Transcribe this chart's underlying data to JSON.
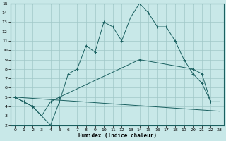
{
  "xlabel": "Humidex (Indice chaleur)",
  "ylabel": "",
  "bg_color": "#c8e8e8",
  "grid_color": "#a0c8c8",
  "line_color": "#1a6060",
  "xlim": [
    -0.5,
    23.5
  ],
  "ylim": [
    2,
    15
  ],
  "xticks": [
    0,
    1,
    2,
    3,
    4,
    5,
    6,
    7,
    8,
    9,
    10,
    11,
    12,
    13,
    14,
    15,
    16,
    17,
    18,
    19,
    20,
    21,
    22,
    23
  ],
  "yticks": [
    2,
    3,
    4,
    5,
    6,
    7,
    8,
    9,
    10,
    11,
    12,
    13,
    14,
    15
  ],
  "line1_x": [
    0,
    1,
    2,
    3,
    4,
    5,
    6,
    7,
    8,
    9,
    10,
    11,
    12,
    13,
    14,
    15,
    16,
    17,
    18,
    19,
    20,
    21,
    22,
    23
  ],
  "line1_y": [
    5.0,
    4.5,
    4.0,
    3.0,
    2.0,
    4.5,
    7.5,
    8.0,
    10.5,
    9.8,
    13.0,
    12.5,
    11.0,
    13.5,
    15.0,
    14.0,
    12.5,
    12.5,
    11.0,
    9.0,
    7.5,
    6.5,
    4.5,
    4.5
  ],
  "line2_x": [
    0,
    1,
    2,
    3,
    4,
    5,
    14,
    20,
    21,
    22,
    23
  ],
  "line2_y": [
    5.0,
    4.5,
    4.0,
    3.0,
    4.5,
    5.0,
    9.0,
    8.0,
    7.5,
    4.5,
    4.5
  ],
  "line3_x": [
    0,
    23
  ],
  "line3_y": [
    4.5,
    4.5
  ],
  "line4_x": [
    0,
    23
  ],
  "line4_y": [
    5.0,
    3.5
  ]
}
